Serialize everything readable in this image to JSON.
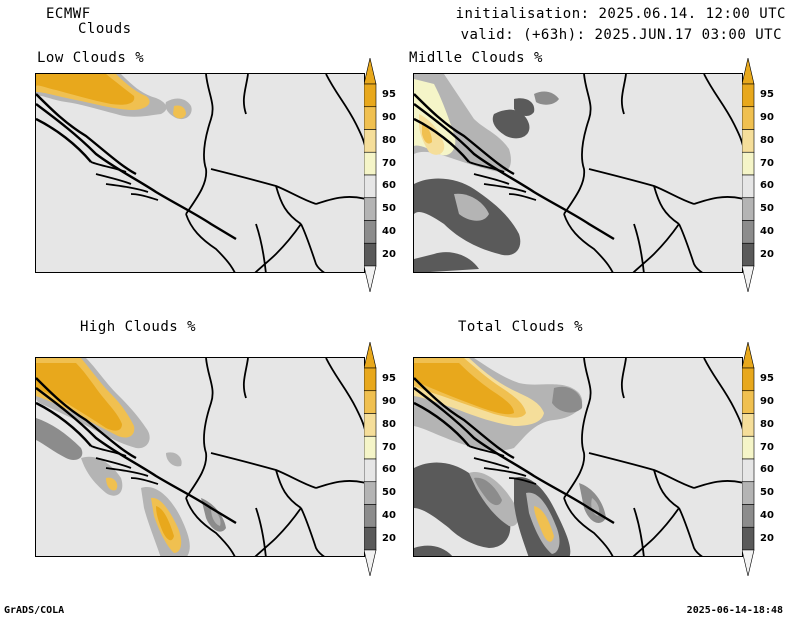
{
  "header": {
    "model": "ECMWF",
    "product": "Clouds",
    "init": "initialisation: 2025.06.14. 12:00 UTC",
    "valid": "valid: (+63h): 2025.JUN.17 03:00 UTC"
  },
  "panels": [
    {
      "id": "low",
      "title": "Low Clouds %"
    },
    {
      "id": "middle",
      "title": "Midlle Clouds %"
    },
    {
      "id": "high",
      "title": "High Clouds %"
    },
    {
      "id": "total",
      "title": "Total Clouds %"
    }
  ],
  "colorbar": {
    "levels": [
      "95",
      "90",
      "80",
      "70",
      "60",
      "50",
      "40",
      "20"
    ],
    "colors": [
      "#e8a81c",
      "#f0c050",
      "#f5de9a",
      "#f5f5c8",
      "#e6e6e6",
      "#b4b4b4",
      "#8c8c8c",
      "#5a5a5a"
    ],
    "under_color": "#f2f2f2",
    "over_color": "#e8a81c"
  },
  "footer": {
    "left": "GrADS/COLA",
    "right": "2025-06-14-18:48"
  }
}
